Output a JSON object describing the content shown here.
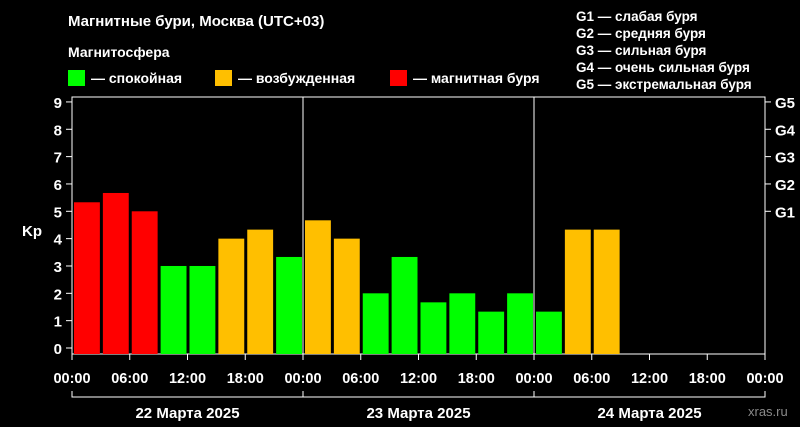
{
  "chart_data": {
    "type": "bar",
    "title": "Магнитные бури, Москва (UTC+03)",
    "legend_title": "Магнитосфера",
    "legend": [
      {
        "label": "— спокойная",
        "color": "#00ff00"
      },
      {
        "label": "— возбужденная",
        "color": "#ffbf00"
      },
      {
        "label": "— магнитная буря",
        "color": "#ff0000"
      }
    ],
    "g_scale": [
      "G1 — слабая буря",
      "G2 — средняя буря",
      "G3 — сильная буря",
      "G4 — очень сильная буря",
      "G5 — экстремальная буря"
    ],
    "ylabel": "Kp",
    "ylim": [
      0,
      9
    ],
    "y_ticks": [
      "0",
      "1",
      "2",
      "3",
      "4",
      "5",
      "6",
      "7",
      "8",
      "9"
    ],
    "right_ticks": [
      {
        "label": "G1",
        "value": 5
      },
      {
        "label": "G2",
        "value": 6
      },
      {
        "label": "G3",
        "value": 7
      },
      {
        "label": "G4",
        "value": 8
      },
      {
        "label": "G5",
        "value": 9
      }
    ],
    "x_tick_labels": [
      "00:00",
      "06:00",
      "12:00",
      "18:00",
      "00:00",
      "06:00",
      "12:00",
      "18:00",
      "00:00",
      "06:00",
      "12:00",
      "18:00",
      "00:00"
    ],
    "days": [
      "22 Марта 2025",
      "23 Марта 2025",
      "24 Марта 2025"
    ],
    "slots_total": 24,
    "categories": [
      "22 00:00",
      "22 03:00",
      "22 06:00",
      "22 09:00",
      "22 12:00",
      "22 15:00",
      "22 18:00",
      "22 21:00",
      "23 00:00",
      "23 03:00",
      "23 06:00",
      "23 09:00",
      "23 12:00",
      "23 15:00",
      "23 18:00",
      "23 21:00",
      "24 00:00",
      "24 03:00",
      "24 06:00"
    ],
    "values": [
      5.33,
      5.67,
      5.0,
      3.0,
      3.0,
      4.0,
      4.33,
      3.33,
      4.67,
      4.0,
      2.0,
      3.33,
      1.67,
      2.0,
      1.33,
      2.0,
      1.33,
      4.33,
      4.33
    ],
    "colors": {
      "quiet": "#00ff00",
      "active": "#ffbf00",
      "storm": "#ff0000"
    },
    "watermark": "xras.ru"
  }
}
